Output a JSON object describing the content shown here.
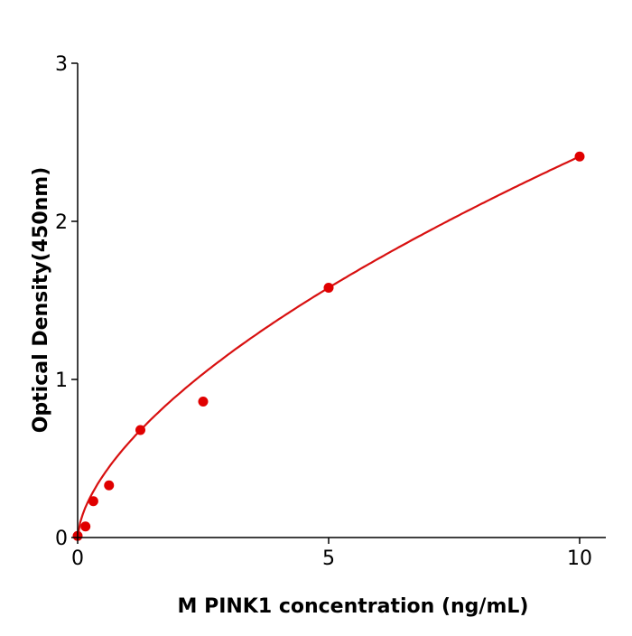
{
  "chart_data": {
    "type": "scatter",
    "title": "",
    "xlabel": "M  PINK1 concentration (ng/mL)",
    "ylabel": "Optical Density(450nm)",
    "xlim": [
      0,
      10.5
    ],
    "ylim": [
      0,
      3
    ],
    "xticks": [
      0,
      5,
      10
    ],
    "yticks": [
      0,
      1,
      2,
      3
    ],
    "grid": false,
    "legend": "none",
    "color": "#e00000",
    "curve_color": "#d81010",
    "x": [
      0,
      0.156,
      0.3125,
      0.625,
      1.25,
      2.5,
      5,
      10
    ],
    "y": [
      0.01,
      0.07,
      0.23,
      0.33,
      0.68,
      0.86,
      1.58,
      2.41
    ],
    "fitted_curve": true
  }
}
